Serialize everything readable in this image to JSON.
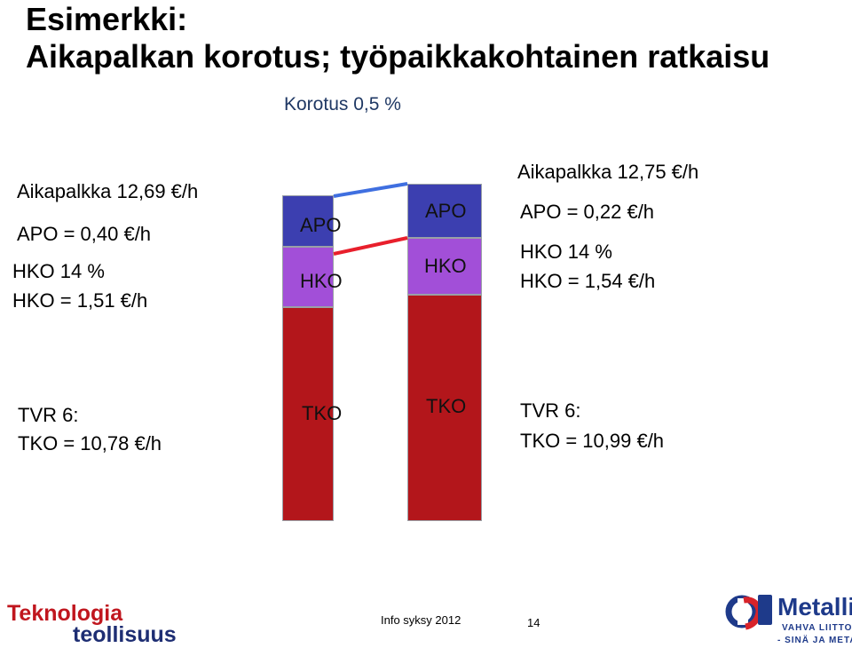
{
  "title": {
    "line1": "Esimerkki:",
    "line2": "Aikapalkan korotus; työpaikkakohtainen ratkaisu"
  },
  "subtitle": "Korotus 0,5 %",
  "left_info": {
    "aikapalkka": "Aikapalkka 12,69 €/h",
    "apo": "APO = 0,40 €/h",
    "hko_pct": "HKO 14 %",
    "hko_val": "HKO = 1,51 €/h",
    "tvr": "TVR 6:",
    "tko": "TKO = 10,78 €/h"
  },
  "right_info": {
    "aikapalkka": "Aikapalkka 12,75 €/h",
    "apo": "APO = 0,22 €/h",
    "hko_pct": "HKO 14 %",
    "hko_val": "HKO = 1,54 €/h",
    "tvr": "TVR 6:",
    "tko": "TKO = 10,99 €/h"
  },
  "bars": [
    {
      "segments": [
        {
          "label": "APO",
          "value": 0.4,
          "color": "#3c3fb0"
        },
        {
          "label": "HKO",
          "value": 1.51,
          "color": "#a24fd8"
        },
        {
          "label": "TKO",
          "value": 10.78,
          "color": "#b3161b"
        }
      ]
    },
    {
      "segments": [
        {
          "label": "APO",
          "value": 0.22,
          "color": "#3c3fb0"
        },
        {
          "label": "HKO",
          "value": 1.54,
          "color": "#a24fd8"
        },
        {
          "label": "TKO",
          "value": 10.99,
          "color": "#b3161b"
        }
      ]
    }
  ],
  "connector_colors": {
    "top": "#3f6fe0",
    "middle": "#e81f2c"
  },
  "footer": {
    "left_logo_line1": "Teknologia",
    "left_logo_line2": "teollisuus",
    "info": "Info syksy 2012",
    "page": "14",
    "right_logo_name": "Metalli",
    "right_logo_sub1": "VAHVA LIITTO",
    "right_logo_sub2": "- SINÄ JA METALLI"
  },
  "colors": {
    "teknologia_red": "#c0161e",
    "teknologia_blue": "#1e2e73",
    "metalli_red": "#d8232a",
    "metalli_blue": "#1e3a8a"
  }
}
